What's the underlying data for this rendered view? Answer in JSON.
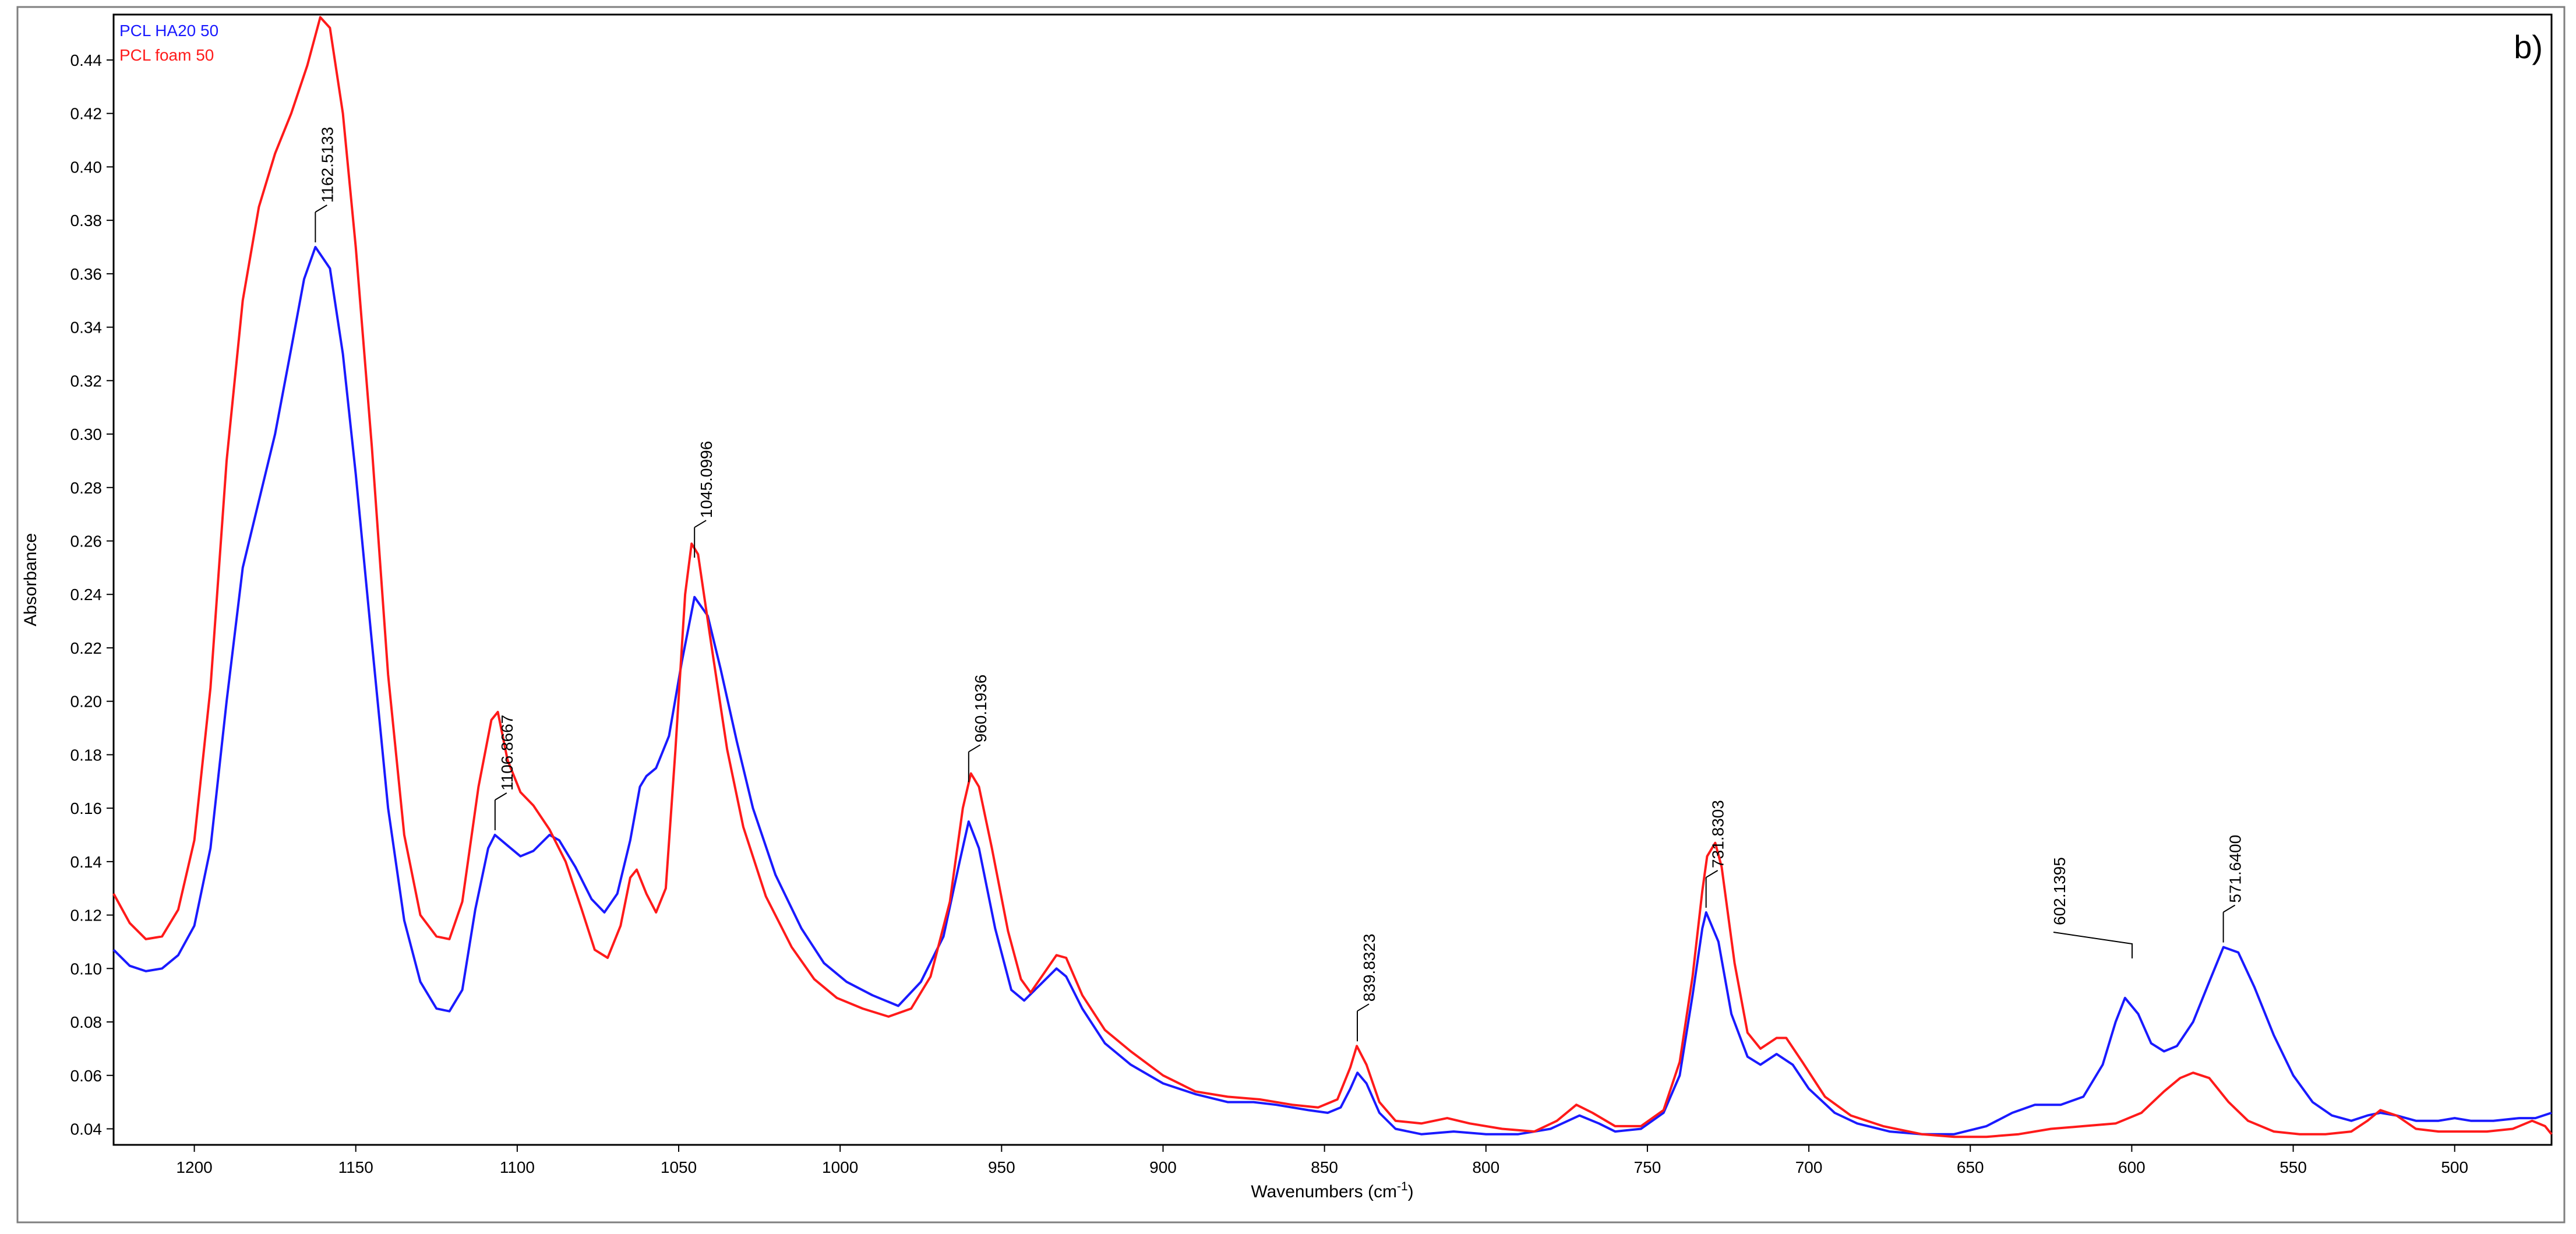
{
  "panel_label": "b)",
  "chart_data": {
    "type": "line",
    "title": "",
    "xlabel": "Wavenumbers (cm-1)",
    "xlabel_main": "Wavenumbers (cm",
    "xlabel_sup": "-1",
    "xlabel_close": ")",
    "ylabel": "Absorbance",
    "xlim": [
      1225,
      470
    ],
    "ylim": [
      0.034,
      0.457
    ],
    "x_ticks": [
      1200,
      1150,
      1100,
      1050,
      1000,
      950,
      900,
      850,
      800,
      750,
      700,
      650,
      600,
      550,
      500
    ],
    "y_ticks": [
      0.04,
      0.06,
      0.08,
      0.1,
      0.12,
      0.14,
      0.16,
      0.18,
      0.2,
      0.22,
      0.24,
      0.26,
      0.28,
      0.3,
      0.32,
      0.34,
      0.36,
      0.38,
      0.4,
      0.42,
      0.44
    ],
    "grid": false,
    "legend_position": "top-left",
    "colors": {
      "PCL HA20 50": "#1a1aff",
      "PCL foam 50": "#ff1a1a",
      "axis": "#000000"
    },
    "series": [
      {
        "name": "PCL HA20 50",
        "color": "#1a1aff",
        "points": [
          [
            1225,
            0.107
          ],
          [
            1220,
            0.101
          ],
          [
            1215,
            0.099
          ],
          [
            1210,
            0.1
          ],
          [
            1205,
            0.105
          ],
          [
            1200,
            0.116
          ],
          [
            1195,
            0.145
          ],
          [
            1190,
            0.2
          ],
          [
            1185,
            0.25
          ],
          [
            1180,
            0.275
          ],
          [
            1175,
            0.3
          ],
          [
            1170,
            0.332
          ],
          [
            1166,
            0.358
          ],
          [
            1162.5,
            0.37
          ],
          [
            1158,
            0.362
          ],
          [
            1154,
            0.33
          ],
          [
            1150,
            0.285
          ],
          [
            1145,
            0.222
          ],
          [
            1140,
            0.16
          ],
          [
            1135,
            0.118
          ],
          [
            1130,
            0.095
          ],
          [
            1125,
            0.085
          ],
          [
            1121,
            0.084
          ],
          [
            1117,
            0.092
          ],
          [
            1113,
            0.122
          ],
          [
            1109,
            0.145
          ],
          [
            1106.9,
            0.15
          ],
          [
            1103,
            0.146
          ],
          [
            1099,
            0.142
          ],
          [
            1095,
            0.144
          ],
          [
            1090,
            0.15
          ],
          [
            1087,
            0.148
          ],
          [
            1082,
            0.138
          ],
          [
            1077,
            0.126
          ],
          [
            1073,
            0.121
          ],
          [
            1069,
            0.128
          ],
          [
            1065,
            0.148
          ],
          [
            1062,
            0.168
          ],
          [
            1060,
            0.172
          ],
          [
            1057,
            0.175
          ],
          [
            1053,
            0.187
          ],
          [
            1049,
            0.215
          ],
          [
            1045.1,
            0.239
          ],
          [
            1041,
            0.232
          ],
          [
            1037,
            0.212
          ],
          [
            1032,
            0.185
          ],
          [
            1027,
            0.16
          ],
          [
            1020,
            0.135
          ],
          [
            1012,
            0.115
          ],
          [
            1005,
            0.102
          ],
          [
            998,
            0.095
          ],
          [
            990,
            0.09
          ],
          [
            982,
            0.086
          ],
          [
            975,
            0.095
          ],
          [
            968,
            0.112
          ],
          [
            963,
            0.14
          ],
          [
            960.2,
            0.155
          ],
          [
            957,
            0.145
          ],
          [
            952,
            0.115
          ],
          [
            947,
            0.092
          ],
          [
            943,
            0.088
          ],
          [
            938,
            0.094
          ],
          [
            933,
            0.1
          ],
          [
            930,
            0.097
          ],
          [
            925,
            0.085
          ],
          [
            918,
            0.072
          ],
          [
            910,
            0.064
          ],
          [
            900,
            0.057
          ],
          [
            890,
            0.053
          ],
          [
            880,
            0.05
          ],
          [
            872,
            0.05
          ],
          [
            865,
            0.049
          ],
          [
            855,
            0.047
          ],
          [
            849,
            0.046
          ],
          [
            845,
            0.048
          ],
          [
            842,
            0.055
          ],
          [
            839.8,
            0.061
          ],
          [
            837,
            0.057
          ],
          [
            833,
            0.046
          ],
          [
            828,
            0.04
          ],
          [
            820,
            0.038
          ],
          [
            810,
            0.039
          ],
          [
            800,
            0.038
          ],
          [
            790,
            0.038
          ],
          [
            780,
            0.04
          ],
          [
            771,
            0.045
          ],
          [
            765,
            0.042
          ],
          [
            760,
            0.039
          ],
          [
            752,
            0.04
          ],
          [
            745,
            0.046
          ],
          [
            740,
            0.06
          ],
          [
            736,
            0.09
          ],
          [
            733,
            0.115
          ],
          [
            731.8,
            0.121
          ],
          [
            728,
            0.11
          ],
          [
            724,
            0.083
          ],
          [
            719,
            0.067
          ],
          [
            715,
            0.064
          ],
          [
            710,
            0.068
          ],
          [
            705,
            0.064
          ],
          [
            700,
            0.055
          ],
          [
            692,
            0.046
          ],
          [
            685,
            0.042
          ],
          [
            675,
            0.039
          ],
          [
            665,
            0.038
          ],
          [
            655,
            0.038
          ],
          [
            645,
            0.041
          ],
          [
            637,
            0.046
          ],
          [
            630,
            0.049
          ],
          [
            622,
            0.049
          ],
          [
            615,
            0.052
          ],
          [
            609,
            0.064
          ],
          [
            605,
            0.08
          ],
          [
            602.1,
            0.089
          ],
          [
            598,
            0.083
          ],
          [
            594,
            0.072
          ],
          [
            590,
            0.069
          ],
          [
            586,
            0.071
          ],
          [
            581,
            0.08
          ],
          [
            576,
            0.095
          ],
          [
            571.6,
            0.108
          ],
          [
            567,
            0.106
          ],
          [
            562,
            0.093
          ],
          [
            556,
            0.075
          ],
          [
            550,
            0.06
          ],
          [
            544,
            0.05
          ],
          [
            538,
            0.045
          ],
          [
            532,
            0.043
          ],
          [
            527,
            0.045
          ],
          [
            523,
            0.046
          ],
          [
            518,
            0.045
          ],
          [
            512,
            0.043
          ],
          [
            505,
            0.043
          ],
          [
            500,
            0.044
          ],
          [
            495,
            0.043
          ],
          [
            488,
            0.043
          ],
          [
            480,
            0.044
          ],
          [
            475,
            0.044
          ],
          [
            470,
            0.046
          ]
        ]
      },
      {
        "name": "PCL foam 50",
        "color": "#ff1a1a",
        "points": [
          [
            1225,
            0.128
          ],
          [
            1220,
            0.117
          ],
          [
            1215,
            0.111
          ],
          [
            1210,
            0.112
          ],
          [
            1205,
            0.122
          ],
          [
            1200,
            0.148
          ],
          [
            1195,
            0.205
          ],
          [
            1190,
            0.29
          ],
          [
            1185,
            0.35
          ],
          [
            1180,
            0.385
          ],
          [
            1175,
            0.405
          ],
          [
            1170,
            0.42
          ],
          [
            1165,
            0.438
          ],
          [
            1161,
            0.456
          ],
          [
            1158,
            0.452
          ],
          [
            1154,
            0.42
          ],
          [
            1150,
            0.37
          ],
          [
            1145,
            0.295
          ],
          [
            1140,
            0.21
          ],
          [
            1135,
            0.15
          ],
          [
            1130,
            0.12
          ],
          [
            1125,
            0.112
          ],
          [
            1121,
            0.111
          ],
          [
            1117,
            0.125
          ],
          [
            1112,
            0.168
          ],
          [
            1108,
            0.193
          ],
          [
            1106,
            0.196
          ],
          [
            1103,
            0.178
          ],
          [
            1099,
            0.166
          ],
          [
            1095,
            0.161
          ],
          [
            1090,
            0.152
          ],
          [
            1085,
            0.14
          ],
          [
            1080,
            0.122
          ],
          [
            1076,
            0.107
          ],
          [
            1072,
            0.104
          ],
          [
            1068,
            0.116
          ],
          [
            1065,
            0.134
          ],
          [
            1063,
            0.137
          ],
          [
            1060,
            0.128
          ],
          [
            1057,
            0.121
          ],
          [
            1054,
            0.13
          ],
          [
            1051,
            0.182
          ],
          [
            1048,
            0.24
          ],
          [
            1046,
            0.259
          ],
          [
            1044,
            0.255
          ],
          [
            1040,
            0.222
          ],
          [
            1035,
            0.182
          ],
          [
            1030,
            0.153
          ],
          [
            1023,
            0.127
          ],
          [
            1015,
            0.108
          ],
          [
            1008,
            0.096
          ],
          [
            1001,
            0.089
          ],
          [
            993,
            0.085
          ],
          [
            985,
            0.082
          ],
          [
            978,
            0.085
          ],
          [
            972,
            0.097
          ],
          [
            966,
            0.125
          ],
          [
            962,
            0.16
          ],
          [
            959.5,
            0.173
          ],
          [
            957,
            0.168
          ],
          [
            953,
            0.145
          ],
          [
            948,
            0.114
          ],
          [
            944,
            0.096
          ],
          [
            941,
            0.091
          ],
          [
            937,
            0.098
          ],
          [
            933,
            0.105
          ],
          [
            930,
            0.104
          ],
          [
            925,
            0.09
          ],
          [
            918,
            0.077
          ],
          [
            910,
            0.069
          ],
          [
            900,
            0.06
          ],
          [
            890,
            0.054
          ],
          [
            880,
            0.052
          ],
          [
            870,
            0.051
          ],
          [
            860,
            0.049
          ],
          [
            852,
            0.048
          ],
          [
            846,
            0.051
          ],
          [
            842,
            0.063
          ],
          [
            840,
            0.071
          ],
          [
            837,
            0.064
          ],
          [
            833,
            0.05
          ],
          [
            828,
            0.043
          ],
          [
            820,
            0.042
          ],
          [
            812,
            0.044
          ],
          [
            805,
            0.042
          ],
          [
            795,
            0.04
          ],
          [
            785,
            0.039
          ],
          [
            778,
            0.043
          ],
          [
            772,
            0.049
          ],
          [
            767,
            0.046
          ],
          [
            760,
            0.041
          ],
          [
            752,
            0.041
          ],
          [
            745,
            0.047
          ],
          [
            740,
            0.065
          ],
          [
            736,
            0.097
          ],
          [
            733,
            0.129
          ],
          [
            731.5,
            0.142
          ],
          [
            729,
            0.147
          ],
          [
            727,
            0.138
          ],
          [
            723,
            0.102
          ],
          [
            719,
            0.076
          ],
          [
            715,
            0.07
          ],
          [
            710,
            0.074
          ],
          [
            707,
            0.074
          ],
          [
            702,
            0.065
          ],
          [
            695,
            0.052
          ],
          [
            687,
            0.045
          ],
          [
            677,
            0.041
          ],
          [
            665,
            0.038
          ],
          [
            655,
            0.037
          ],
          [
            645,
            0.037
          ],
          [
            635,
            0.038
          ],
          [
            625,
            0.04
          ],
          [
            615,
            0.041
          ],
          [
            605,
            0.042
          ],
          [
            597,
            0.046
          ],
          [
            590,
            0.054
          ],
          [
            585,
            0.059
          ],
          [
            581,
            0.061
          ],
          [
            576,
            0.059
          ],
          [
            570,
            0.05
          ],
          [
            564,
            0.043
          ],
          [
            556,
            0.039
          ],
          [
            548,
            0.038
          ],
          [
            540,
            0.038
          ],
          [
            532,
            0.039
          ],
          [
            527,
            0.043
          ],
          [
            523,
            0.047
          ],
          [
            518,
            0.045
          ],
          [
            512,
            0.04
          ],
          [
            505,
            0.039
          ],
          [
            498,
            0.039
          ],
          [
            490,
            0.039
          ],
          [
            482,
            0.04
          ],
          [
            476,
            0.043
          ],
          [
            472,
            0.041
          ],
          [
            470,
            0.038
          ]
        ]
      }
    ],
    "annotations": [
      {
        "label": "1162.5133",
        "x": 1162.5133,
        "y": 0.37
      },
      {
        "label": "1106.8667",
        "x": 1106.8667,
        "y": 0.15
      },
      {
        "label": "1045.0996",
        "x": 1045.0996,
        "y": 0.252
      },
      {
        "label": "960.1936",
        "x": 960.1936,
        "y": 0.168
      },
      {
        "label": "839.8323",
        "x": 839.8323,
        "y": 0.071
      },
      {
        "label": "731.8303",
        "x": 731.8303,
        "y": 0.121
      },
      {
        "label": "602.1395",
        "x": 602.1395,
        "y": 0.089
      },
      {
        "label": "571.6400",
        "x": 571.64,
        "y": 0.108
      }
    ]
  }
}
